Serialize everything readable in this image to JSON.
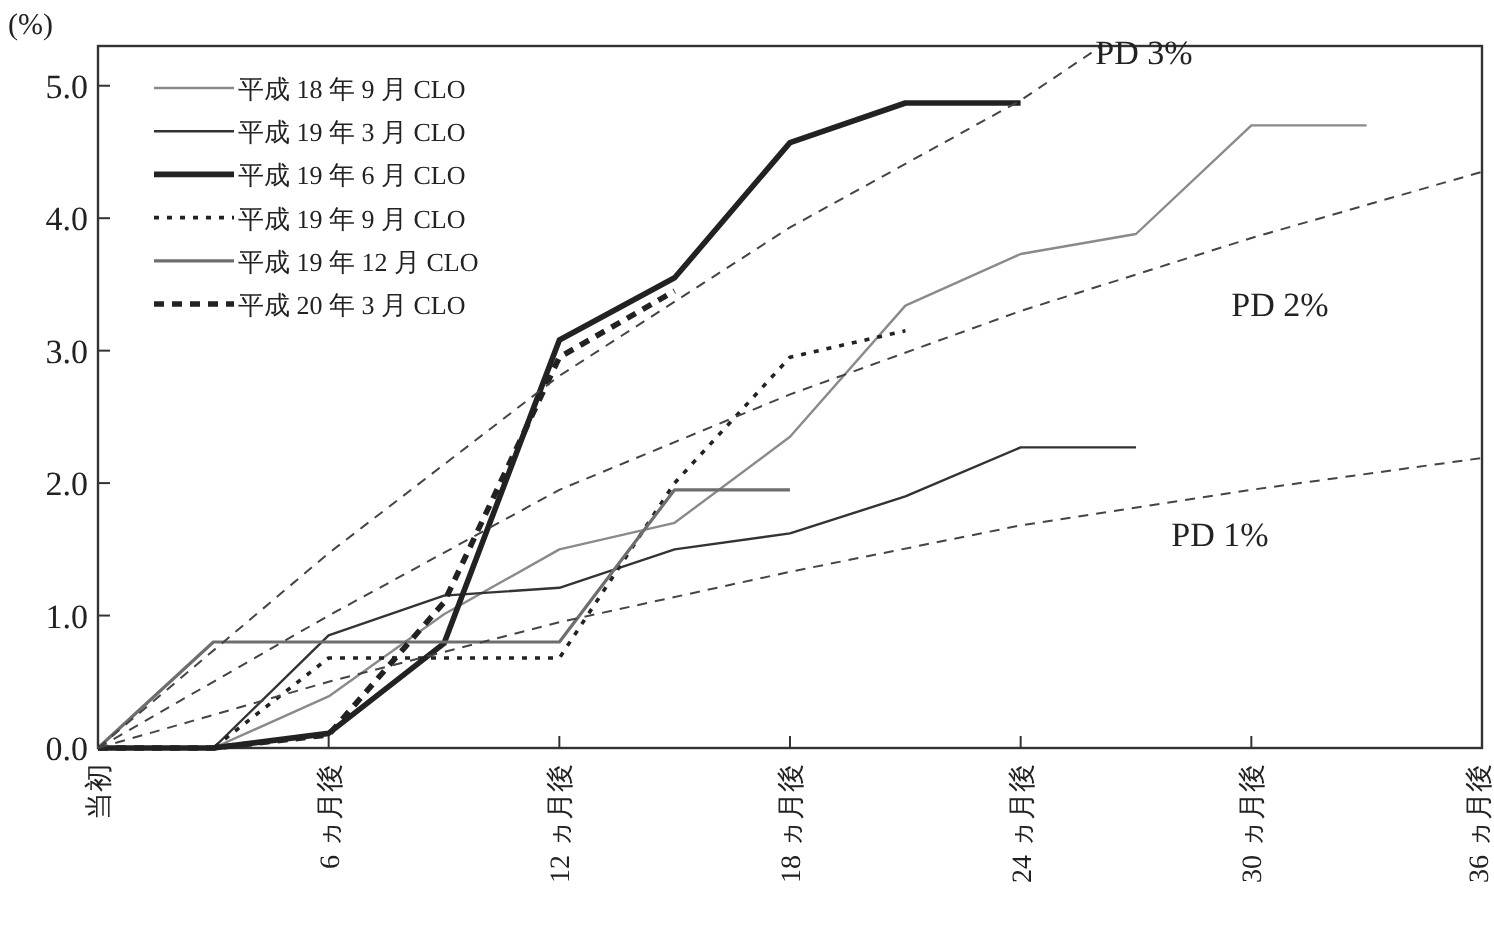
{
  "chart_data": {
    "type": "line",
    "ylabel": "(%)",
    "xlim": [
      0,
      36
    ],
    "ylim": [
      0,
      5.3
    ],
    "xticks": [
      {
        "value": 0,
        "label": "当初"
      },
      {
        "value": 6,
        "label": "6 ヵ月後"
      },
      {
        "value": 12,
        "label": "12 ヵ月後"
      },
      {
        "value": 18,
        "label": "18 ヵ月後"
      },
      {
        "value": 24,
        "label": "24 ヵ月後"
      },
      {
        "value": 30,
        "label": "30 ヵ月後"
      },
      {
        "value": 36,
        "label": "36 ヵ月後"
      }
    ],
    "yticks": [
      {
        "value": 0,
        "label": "0.0"
      },
      {
        "value": 1,
        "label": "1.0"
      },
      {
        "value": 2,
        "label": "2.0"
      },
      {
        "value": 3,
        "label": "3.0"
      },
      {
        "value": 4,
        "label": "4.0"
      },
      {
        "value": 5,
        "label": "5.0"
      }
    ],
    "grid": false,
    "legend": "top left",
    "series": [
      {
        "name": "平成 18 年 9 月 CLO",
        "color": "#8a8a8a",
        "line_style": "solid",
        "x": [
          0,
          3,
          6,
          9,
          12,
          15,
          18,
          21,
          24,
          27,
          30,
          33
        ],
        "values": [
          0,
          0,
          0.39,
          1.01,
          1.5,
          1.7,
          2.35,
          3.34,
          3.73,
          3.88,
          4.7,
          4.7
        ]
      },
      {
        "name": "平成 19 年 3 月 CLO",
        "color": "#333333",
        "line_style": "solid",
        "x": [
          0,
          3,
          6,
          9,
          12,
          15,
          18,
          21,
          24,
          27
        ],
        "values": [
          0,
          0,
          0.85,
          1.15,
          1.21,
          1.5,
          1.62,
          1.9,
          2.27,
          2.27
        ]
      },
      {
        "name": "平成 19 年 6 月 CLO",
        "color": "#222222",
        "line_style": "solid",
        "x": [
          0,
          3,
          6,
          9,
          12,
          15,
          18,
          21,
          24
        ],
        "values": [
          0,
          0,
          0.11,
          0.79,
          3.08,
          3.55,
          4.57,
          4.87,
          4.87
        ]
      },
      {
        "name": "平成 19 年 9 月 CLO",
        "color": "#222222",
        "line_style": "dotted",
        "x": [
          0,
          3,
          6,
          9,
          12,
          15,
          18,
          21
        ],
        "values": [
          0,
          0,
          0.68,
          0.68,
          0.68,
          2.0,
          2.95,
          3.15
        ]
      },
      {
        "name": "平成 19 年 12 月 CLO",
        "color": "#6e6e6e",
        "line_style": "solid",
        "x": [
          0,
          3,
          6,
          9,
          12,
          15,
          18
        ],
        "values": [
          0,
          0.8,
          0.8,
          0.8,
          0.8,
          1.95,
          1.95
        ]
      },
      {
        "name": "平成 20 年 3 月 CLO",
        "color": "#222222",
        "line_style": "dashed",
        "x": [
          0,
          3,
          6,
          9,
          12,
          15
        ],
        "values": [
          0,
          0,
          0.1,
          1.1,
          2.95,
          3.45
        ]
      },
      {
        "color": "#444444",
        "line_style": "dashed",
        "x": [
          0,
          6,
          12,
          18,
          24,
          26.1
        ],
        "values": [
          0,
          1.47,
          2.81,
          3.93,
          4.89,
          5.3
        ]
      },
      {
        "color": "#444444",
        "line_style": "dashed",
        "x": [
          0,
          6,
          12,
          18,
          24,
          30,
          36
        ],
        "values": [
          0,
          1.0,
          1.95,
          2.67,
          3.3,
          3.85,
          4.35
        ]
      },
      {
        "color": "#444444",
        "line_style": "dashed",
        "x": [
          0,
          6,
          12,
          18,
          24,
          30,
          36
        ],
        "values": [
          0,
          0.5,
          0.95,
          1.33,
          1.68,
          1.95,
          2.19
        ]
      }
    ],
    "annotations": [
      "PD 3%",
      "PD 2%",
      "PD 1%"
    ]
  }
}
